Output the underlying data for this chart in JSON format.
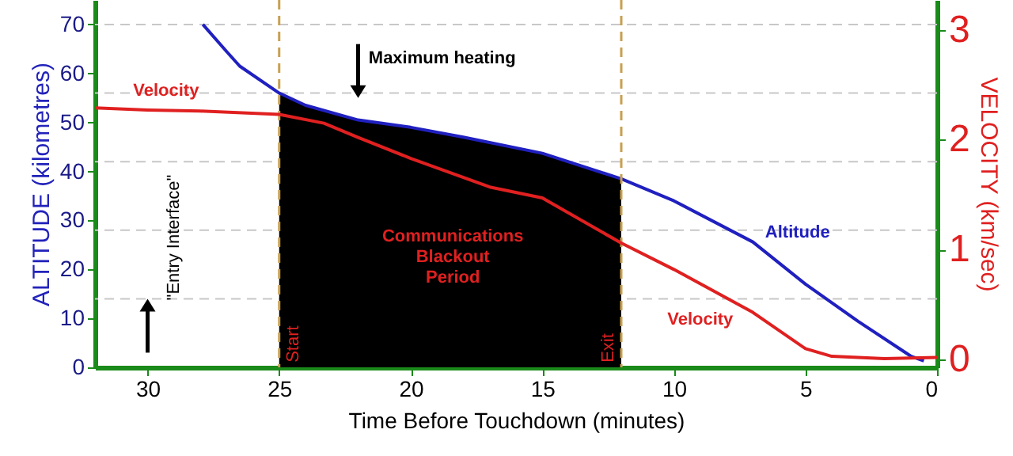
{
  "chart_data": {
    "type": "line",
    "xlabel": "Time Before Touchdown (minutes)",
    "ylabel": "ALTITUDE (kilometres)",
    "y2label": "VELOCITY (km/sec)",
    "xlim": [
      32,
      0
    ],
    "xticks": [
      30,
      25,
      20,
      15,
      10,
      5,
      0
    ],
    "ylim": [
      0,
      75
    ],
    "yticks": [
      0,
      10,
      20,
      30,
      40,
      50,
      60,
      70
    ],
    "y2lim": [
      -0.07,
      3.27
    ],
    "y2ticks": [
      0,
      1,
      2,
      3
    ],
    "series": [
      {
        "type": "area",
        "color": "#000000",
        "x": [
          25,
          24,
          22,
          20,
          18,
          15,
          12
        ],
        "values": [
          56,
          53.5,
          50.5,
          49,
          47,
          43.7,
          38.5
        ]
      },
      {
        "color": "#2020c0",
        "x": [
          27.9,
          27,
          26.5,
          25,
          24,
          22,
          20,
          18,
          15,
          12,
          10,
          7,
          5,
          3,
          1,
          0.5
        ],
        "values": [
          70,
          64.5,
          61.5,
          56,
          53.5,
          50.5,
          49,
          47,
          43.7,
          38.5,
          34,
          25.6,
          17,
          9.4,
          2.3,
          1.3
        ]
      },
      {
        "color": "#e02020",
        "axis": "y2",
        "x": [
          32,
          30,
          28,
          25,
          23.3,
          22,
          20,
          17,
          15,
          12,
          10,
          7,
          5,
          4,
          2,
          0
        ],
        "values": [
          2.29,
          2.27,
          2.26,
          2.23,
          2.15,
          2.02,
          1.83,
          1.57,
          1.47,
          1.06,
          0.82,
          0.43,
          0.1,
          0.03,
          0.01,
          0.02
        ]
      }
    ],
    "ref_lines": [
      {
        "axis": "y",
        "value": 14,
        "color": "#c8c8c8",
        "line_style": "dashed"
      },
      {
        "axis": "y",
        "value": 28,
        "color": "#c8c8c8",
        "line_style": "dashed"
      },
      {
        "axis": "y",
        "value": 42,
        "color": "#c8c8c8",
        "line_style": "dashed"
      },
      {
        "axis": "y",
        "value": 56,
        "color": "#c8c8c8",
        "line_style": "dashed"
      },
      {
        "axis": "y",
        "value": 70,
        "color": "#c8c8c8",
        "line_style": "dashed"
      },
      {
        "axis": "x",
        "value": 25,
        "label": "Start",
        "color": "#c8a050",
        "line_style": "dashed"
      },
      {
        "axis": "x",
        "value": 12,
        "label": "Exit",
        "color": "#c8a050",
        "line_style": "dashed"
      }
    ],
    "annotations": [
      "Maximum heating",
      {
        "text": "Communications\nBlackout\nPeriod",
        "x": 18.4,
        "y": 26.6
      },
      {
        "text": "\"Entry Interface\"",
        "x": 29,
        "y": 26.5
      },
      {
        "text": "Altitude",
        "x": 5.3,
        "y": 27.5
      },
      "Velocity",
      {
        "text": "Velocity",
        "x": 29.3,
        "y": 56.4
      }
    ]
  }
}
